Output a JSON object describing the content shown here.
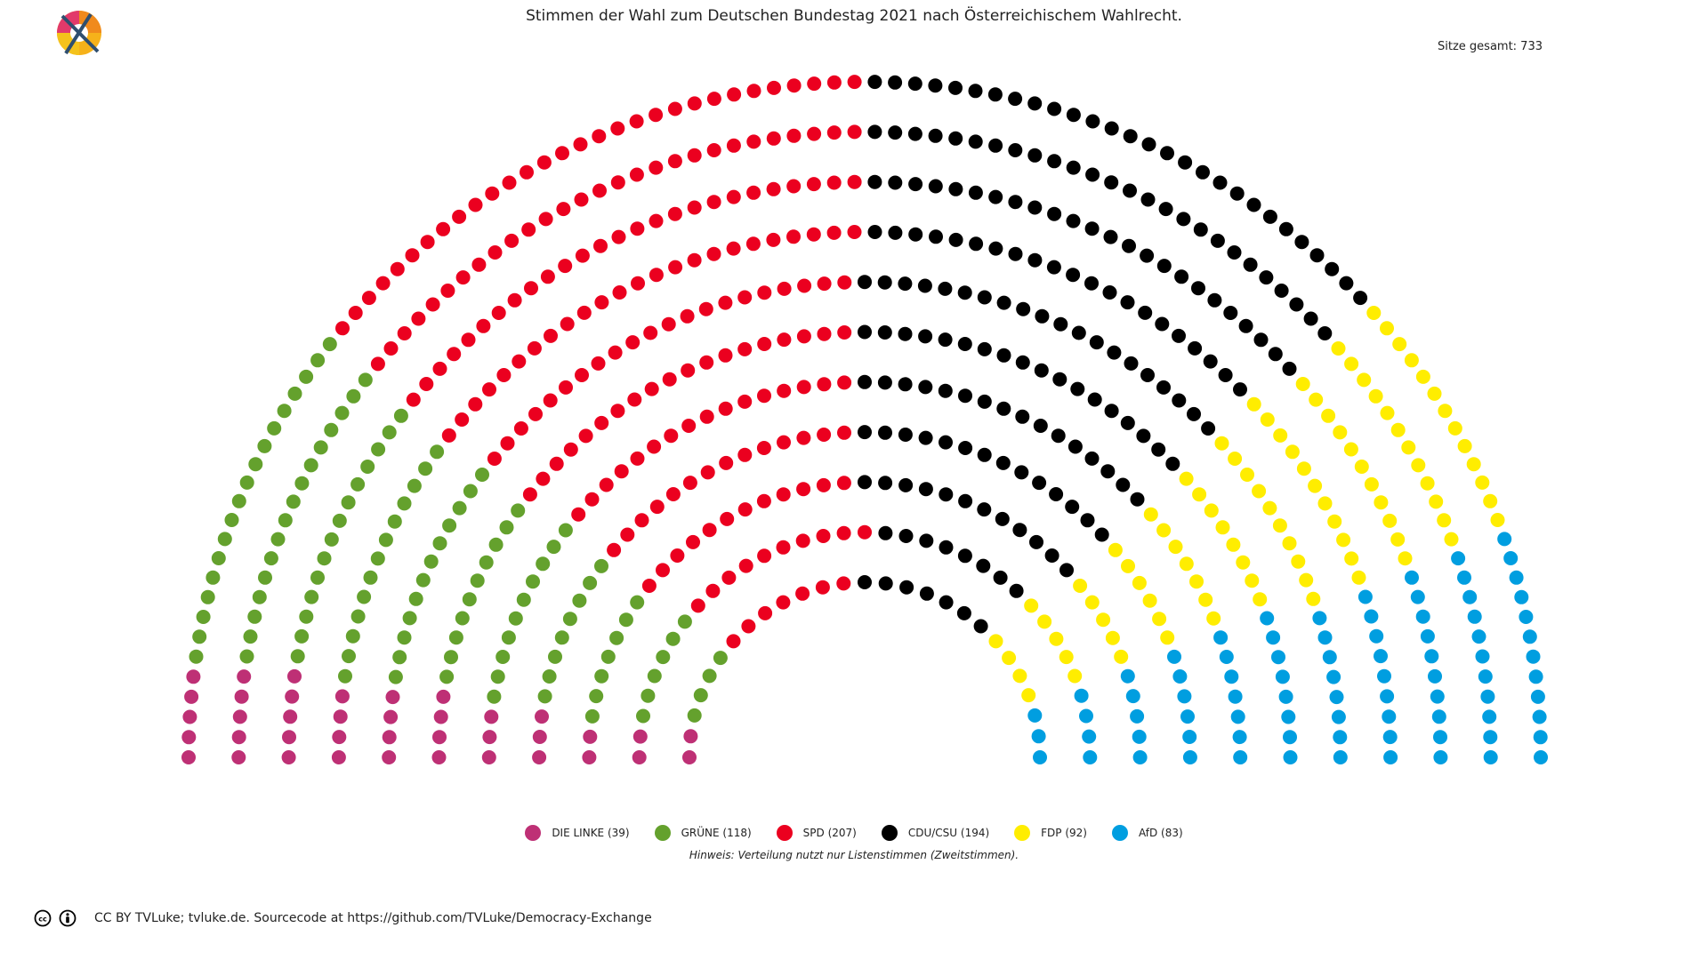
{
  "title": "Stimmen der Wahl zum Deutschen Bundestag 2021 nach Österreichischem Wahlrecht.",
  "seats_total_label": "Sitze gesamt: 733",
  "note": "Hinweis: Verteilung nutzt nur Listenstimmen (Zweitstimmen).",
  "footer": "CC BY TVLuke; tvluke.de. Sourcecode at https://github.com/TVLuke/Democracy-Exchange",
  "icons": {
    "logo": "crossed-out-ballot-logo-icon",
    "cc": "creative-commons-icon",
    "by": "attribution-icon"
  },
  "chart_data": {
    "type": "parliament-seating",
    "title": "Stimmen der Wahl zum Deutschen Bundestag 2021 nach Österreichischem Wahlrecht.",
    "total_seats": 733,
    "rows": 11,
    "legend_position": "bottom-center",
    "parties": [
      {
        "name": "DIE LINKE",
        "seats": 39,
        "color": "#be3075",
        "label": "DIE LINKE (39)"
      },
      {
        "name": "GRÜNE",
        "seats": 118,
        "color": "#64a12d",
        "label": "GRÜNE (118)"
      },
      {
        "name": "SPD",
        "seats": 207,
        "color": "#eb001f",
        "label": "SPD (207)"
      },
      {
        "name": "CDU/CSU",
        "seats": 194,
        "color": "#000000",
        "label": "CDU/CSU (194)"
      },
      {
        "name": "FDP",
        "seats": 92,
        "color": "#ffed00",
        "label": "FDP (92)"
      },
      {
        "name": "AfD",
        "seats": 83,
        "color": "#009ee0",
        "label": "AfD (83)"
      }
    ]
  }
}
